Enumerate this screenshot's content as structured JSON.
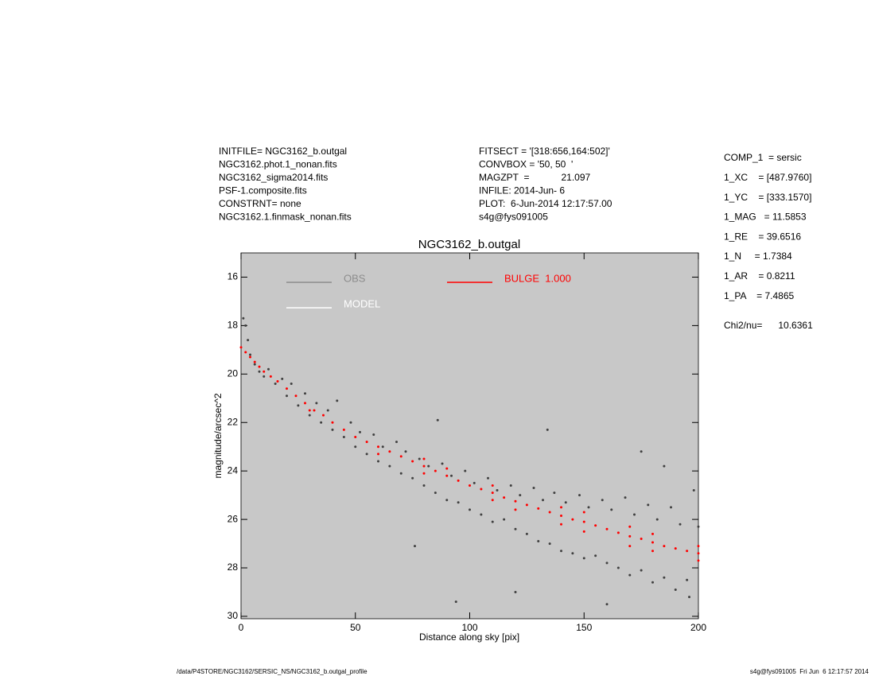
{
  "chart_data": {
    "type": "scatter",
    "title": "NGC3162_b.outgal",
    "xlabel": "Distance along sky [pix]",
    "ylabel": "magnitude/arcsec^2",
    "header_left": [
      "INITFILE= NGC3162_b.outgal",
      "NGC3162.phot.1_nonan.fits",
      "NGC3162_sigma2014.fits",
      "PSF-1.composite.fits",
      "CONSTRNT= none",
      "NGC3162.1.finmask_nonan.fits"
    ],
    "header_middle": [
      "FITSECT = '[318:656,164:502]'",
      "CONVBOX = '50, 50  '",
      "MAGZPT  =            21.097",
      "INFILE: 2014-Jun- 6",
      "PLOT:  6-Jun-2014 12:17:57.00",
      "s4g@fys091005"
    ],
    "parameters": [
      "COMP_1  = sersic",
      "1_XC    = [487.9760]",
      "1_YC    = [333.1570]",
      "1_MAG   = 11.5853",
      "1_RE    = 39.6516",
      "1_N     = 1.7384",
      "1_AR    = 0.8211",
      "1_PA    = 7.4865"
    ],
    "chi2": "Chi2/nu=      10.6361",
    "footer_left": "/data/P4STORE/NGC3162/SERSIC_NS/NGC3162_b.outgal_profile",
    "footer_right": "s4g@fys091005  Fri Jun  6 12:17:57 2014",
    "xlim": [
      0,
      200
    ],
    "xticks": [
      0,
      50,
      100,
      150,
      200
    ],
    "ylim": [
      15,
      30.1
    ],
    "yticks": [
      16,
      18,
      20,
      22,
      24,
      26,
      28,
      30
    ],
    "y_inverted": true,
    "background": "#c8c8c8",
    "series": [
      {
        "name": "OBS",
        "color": "#404040",
        "legend_color": "#8c8c8c",
        "x": [
          1,
          2,
          3,
          4,
          6,
          8,
          10,
          12,
          15,
          18,
          20,
          22,
          25,
          28,
          30,
          33,
          35,
          38,
          40,
          42,
          45,
          48,
          50,
          52,
          55,
          58,
          60,
          62,
          65,
          68,
          70,
          72,
          75,
          78,
          80,
          82,
          85,
          88,
          90,
          92,
          95,
          98,
          100,
          102,
          105,
          108,
          110,
          112,
          115,
          118,
          120,
          122,
          125,
          128,
          130,
          132,
          135,
          137,
          140,
          142,
          145,
          148,
          150,
          152,
          155,
          158,
          160,
          162,
          165,
          168,
          170,
          172,
          175,
          178,
          180,
          182,
          185,
          188,
          190,
          192,
          195,
          198,
          200,
          76,
          94,
          134,
          86,
          120,
          175,
          160,
          196,
          185
        ],
        "values": [
          17.7,
          18.0,
          18.6,
          19.2,
          19.6,
          19.9,
          20.1,
          19.8,
          20.4,
          20.2,
          20.9,
          20.4,
          21.3,
          20.8,
          21.7,
          21.2,
          22.0,
          21.5,
          22.3,
          21.1,
          22.6,
          22.0,
          23.0,
          22.4,
          23.3,
          22.5,
          23.6,
          23.0,
          23.8,
          22.8,
          24.1,
          23.2,
          24.3,
          23.5,
          24.6,
          23.8,
          24.9,
          23.7,
          25.2,
          24.2,
          25.3,
          24.0,
          25.6,
          24.5,
          25.8,
          24.3,
          26.1,
          24.8,
          26.0,
          24.6,
          26.4,
          25.0,
          26.6,
          24.7,
          26.9,
          25.2,
          27.0,
          24.9,
          27.3,
          25.3,
          27.4,
          25.0,
          27.6,
          25.5,
          27.5,
          25.2,
          27.8,
          25.6,
          28.0,
          25.1,
          28.3,
          25.8,
          28.1,
          25.4,
          28.6,
          26.0,
          28.4,
          25.5,
          28.9,
          26.2,
          28.5,
          24.8,
          26.3,
          27.1,
          29.4,
          22.3,
          21.9,
          29.0,
          23.2,
          29.5,
          29.2,
          23.8
        ]
      },
      {
        "name": "MODEL",
        "color": "#ffffff",
        "x": [],
        "values": []
      },
      {
        "name": "BULGE  1.000",
        "color": "#ff0000",
        "x": [
          0,
          2,
          4,
          6,
          8,
          10,
          13,
          16,
          20,
          24,
          28,
          32,
          36,
          40,
          45,
          50,
          55,
          60,
          65,
          70,
          75,
          80,
          85,
          90,
          95,
          100,
          105,
          110,
          115,
          120,
          125,
          130,
          135,
          140,
          145,
          150,
          155,
          160,
          165,
          170,
          175,
          180,
          185,
          190,
          195,
          200,
          30,
          60,
          90,
          120,
          150,
          150,
          180,
          180,
          200,
          200,
          170,
          170,
          140,
          140,
          110,
          110,
          80,
          80
        ],
        "values": [
          18.9,
          19.1,
          19.3,
          19.5,
          19.7,
          19.9,
          20.1,
          20.3,
          20.6,
          20.9,
          21.2,
          21.5,
          21.7,
          22.0,
          22.3,
          22.6,
          22.8,
          23.0,
          23.2,
          23.4,
          23.6,
          23.8,
          24.0,
          24.2,
          24.4,
          24.6,
          24.75,
          24.9,
          25.1,
          25.25,
          25.4,
          25.55,
          25.7,
          25.85,
          26.0,
          26.1,
          26.25,
          26.4,
          26.55,
          26.7,
          26.8,
          26.95,
          27.1,
          27.2,
          27.3,
          27.4,
          21.5,
          23.3,
          23.9,
          25.6,
          26.5,
          25.7,
          27.3,
          26.6,
          27.7,
          27.1,
          26.3,
          27.1,
          26.2,
          25.5,
          25.2,
          24.6,
          24.1,
          23.5
        ]
      }
    ]
  }
}
